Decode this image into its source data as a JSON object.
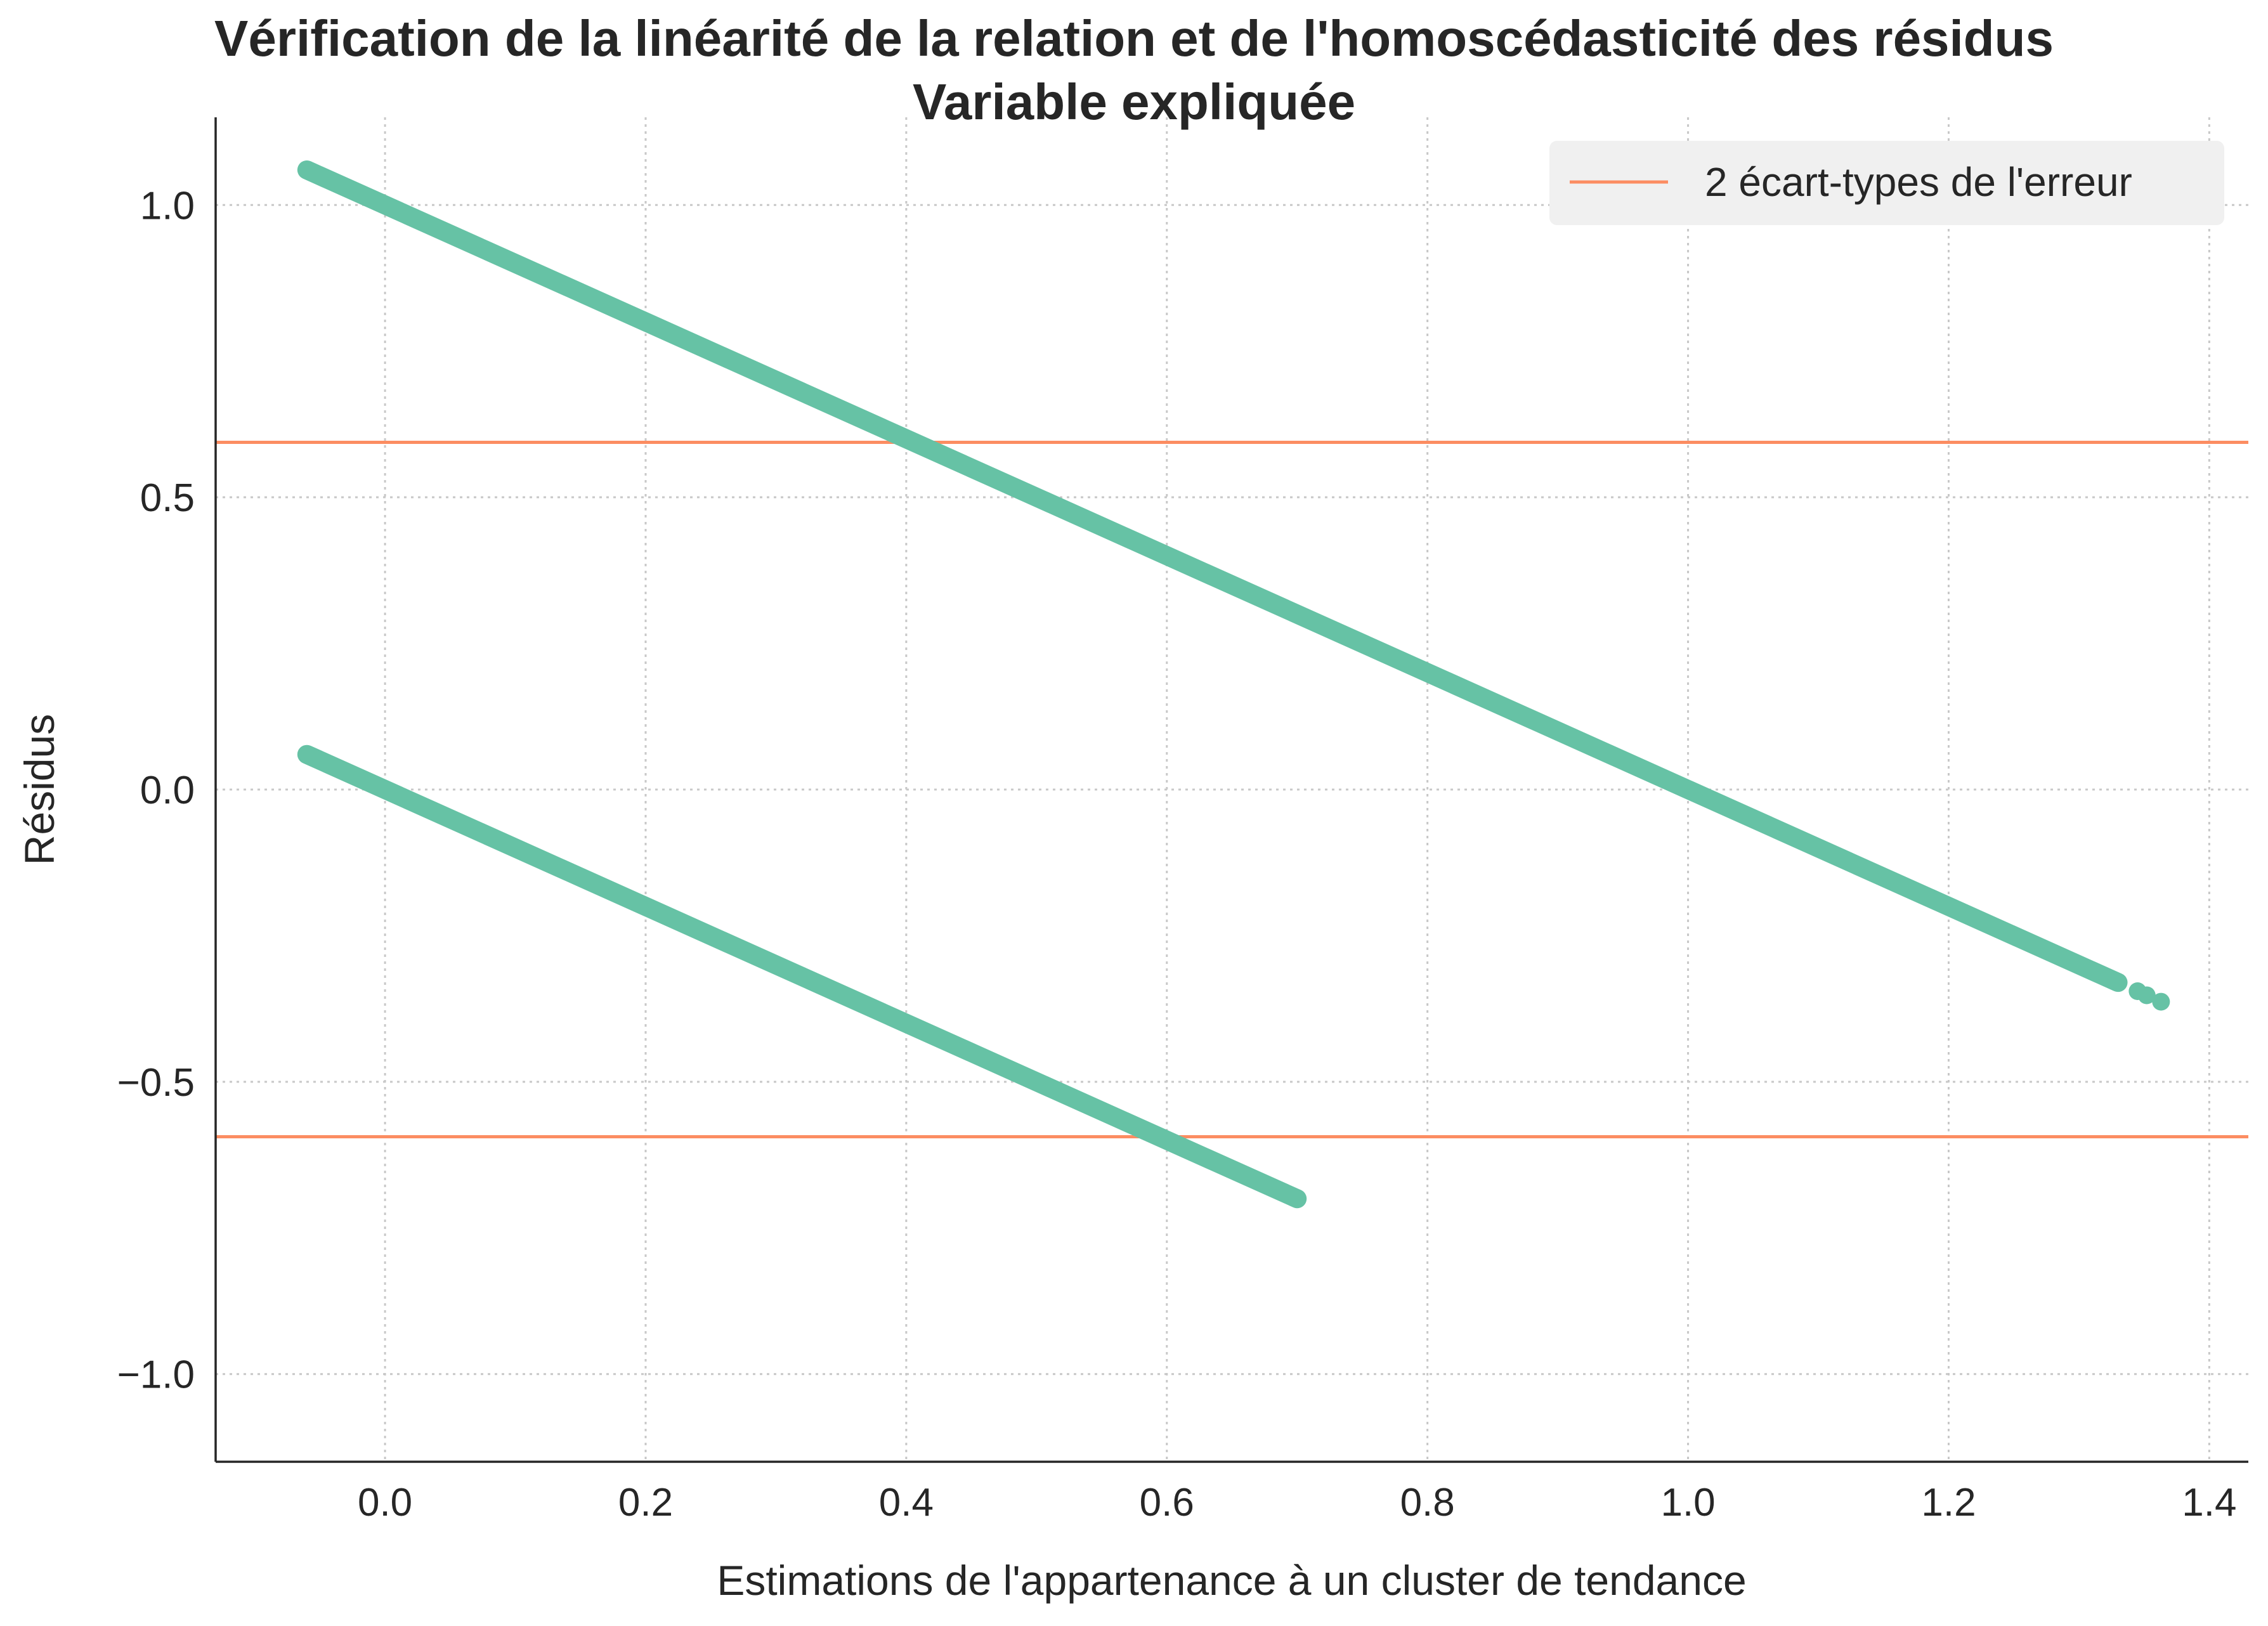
{
  "chart_data": {
    "type": "scatter",
    "title": "Vérification de la linéarité de la relation et de l'homoscédasticité des résidus",
    "subtitle": "Variable expliquée",
    "xlabel": "Estimations de l'appartenance à un cluster de tendance",
    "ylabel": "Résidus",
    "xlim": [
      -0.13,
      1.43
    ],
    "ylim": [
      -1.15,
      1.15
    ],
    "xticks": [
      0.0,
      0.2,
      0.4,
      0.6,
      0.8,
      1.0,
      1.2,
      1.4
    ],
    "xtick_labels": [
      "0.0",
      "0.2",
      "0.4",
      "0.6",
      "0.8",
      "1.0",
      "1.2",
      "1.4"
    ],
    "yticks": [
      -1.0,
      -0.5,
      0.0,
      0.5,
      1.0
    ],
    "ytick_labels": [
      "−1.0",
      "−0.5",
      "0.0",
      "0.5",
      "1.0"
    ],
    "grid": true,
    "legend_position": "top-right",
    "series": [
      {
        "marker_color": "#66c2a5",
        "segments": [
          {
            "x_start": -0.06,
            "x_end": 1.33,
            "y_start": 1.06,
            "y_end": -0.33
          },
          {
            "x_start": -0.06,
            "x_end": 0.7,
            "y_start": 0.06,
            "y_end": -0.7
          }
        ],
        "isolated_points": [
          {
            "x": 1.345,
            "y": -0.345
          },
          {
            "x": 1.352,
            "y": -0.352
          },
          {
            "x": 1.363,
            "y": -0.363
          }
        ]
      }
    ],
    "reference_lines": {
      "name": "2 écart-types de l'erreur",
      "color": "#fc8d62",
      "y_values": [
        0.594,
        -0.594
      ]
    }
  }
}
